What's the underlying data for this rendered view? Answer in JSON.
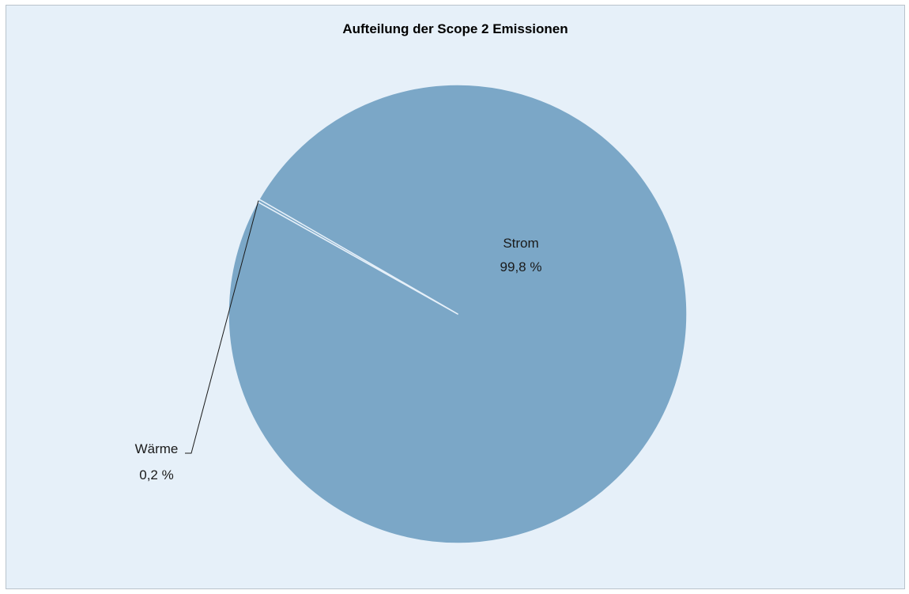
{
  "chart_data": {
    "type": "pie",
    "title": "Aufteilung der Scope 2 Emissionen",
    "slices": [
      {
        "name": "Strom",
        "value": 99.8,
        "label": "99,8 %",
        "color": "#7ba7c7"
      },
      {
        "name": "Wärme",
        "value": 0.2,
        "label": "0,2 %",
        "color": "#7ba7c7"
      }
    ],
    "start_angle_deg": 210,
    "direction": "clockwise",
    "slice_separator_color": "#e6f0f9",
    "background_color": "#e6f0f9",
    "legend": "none"
  }
}
